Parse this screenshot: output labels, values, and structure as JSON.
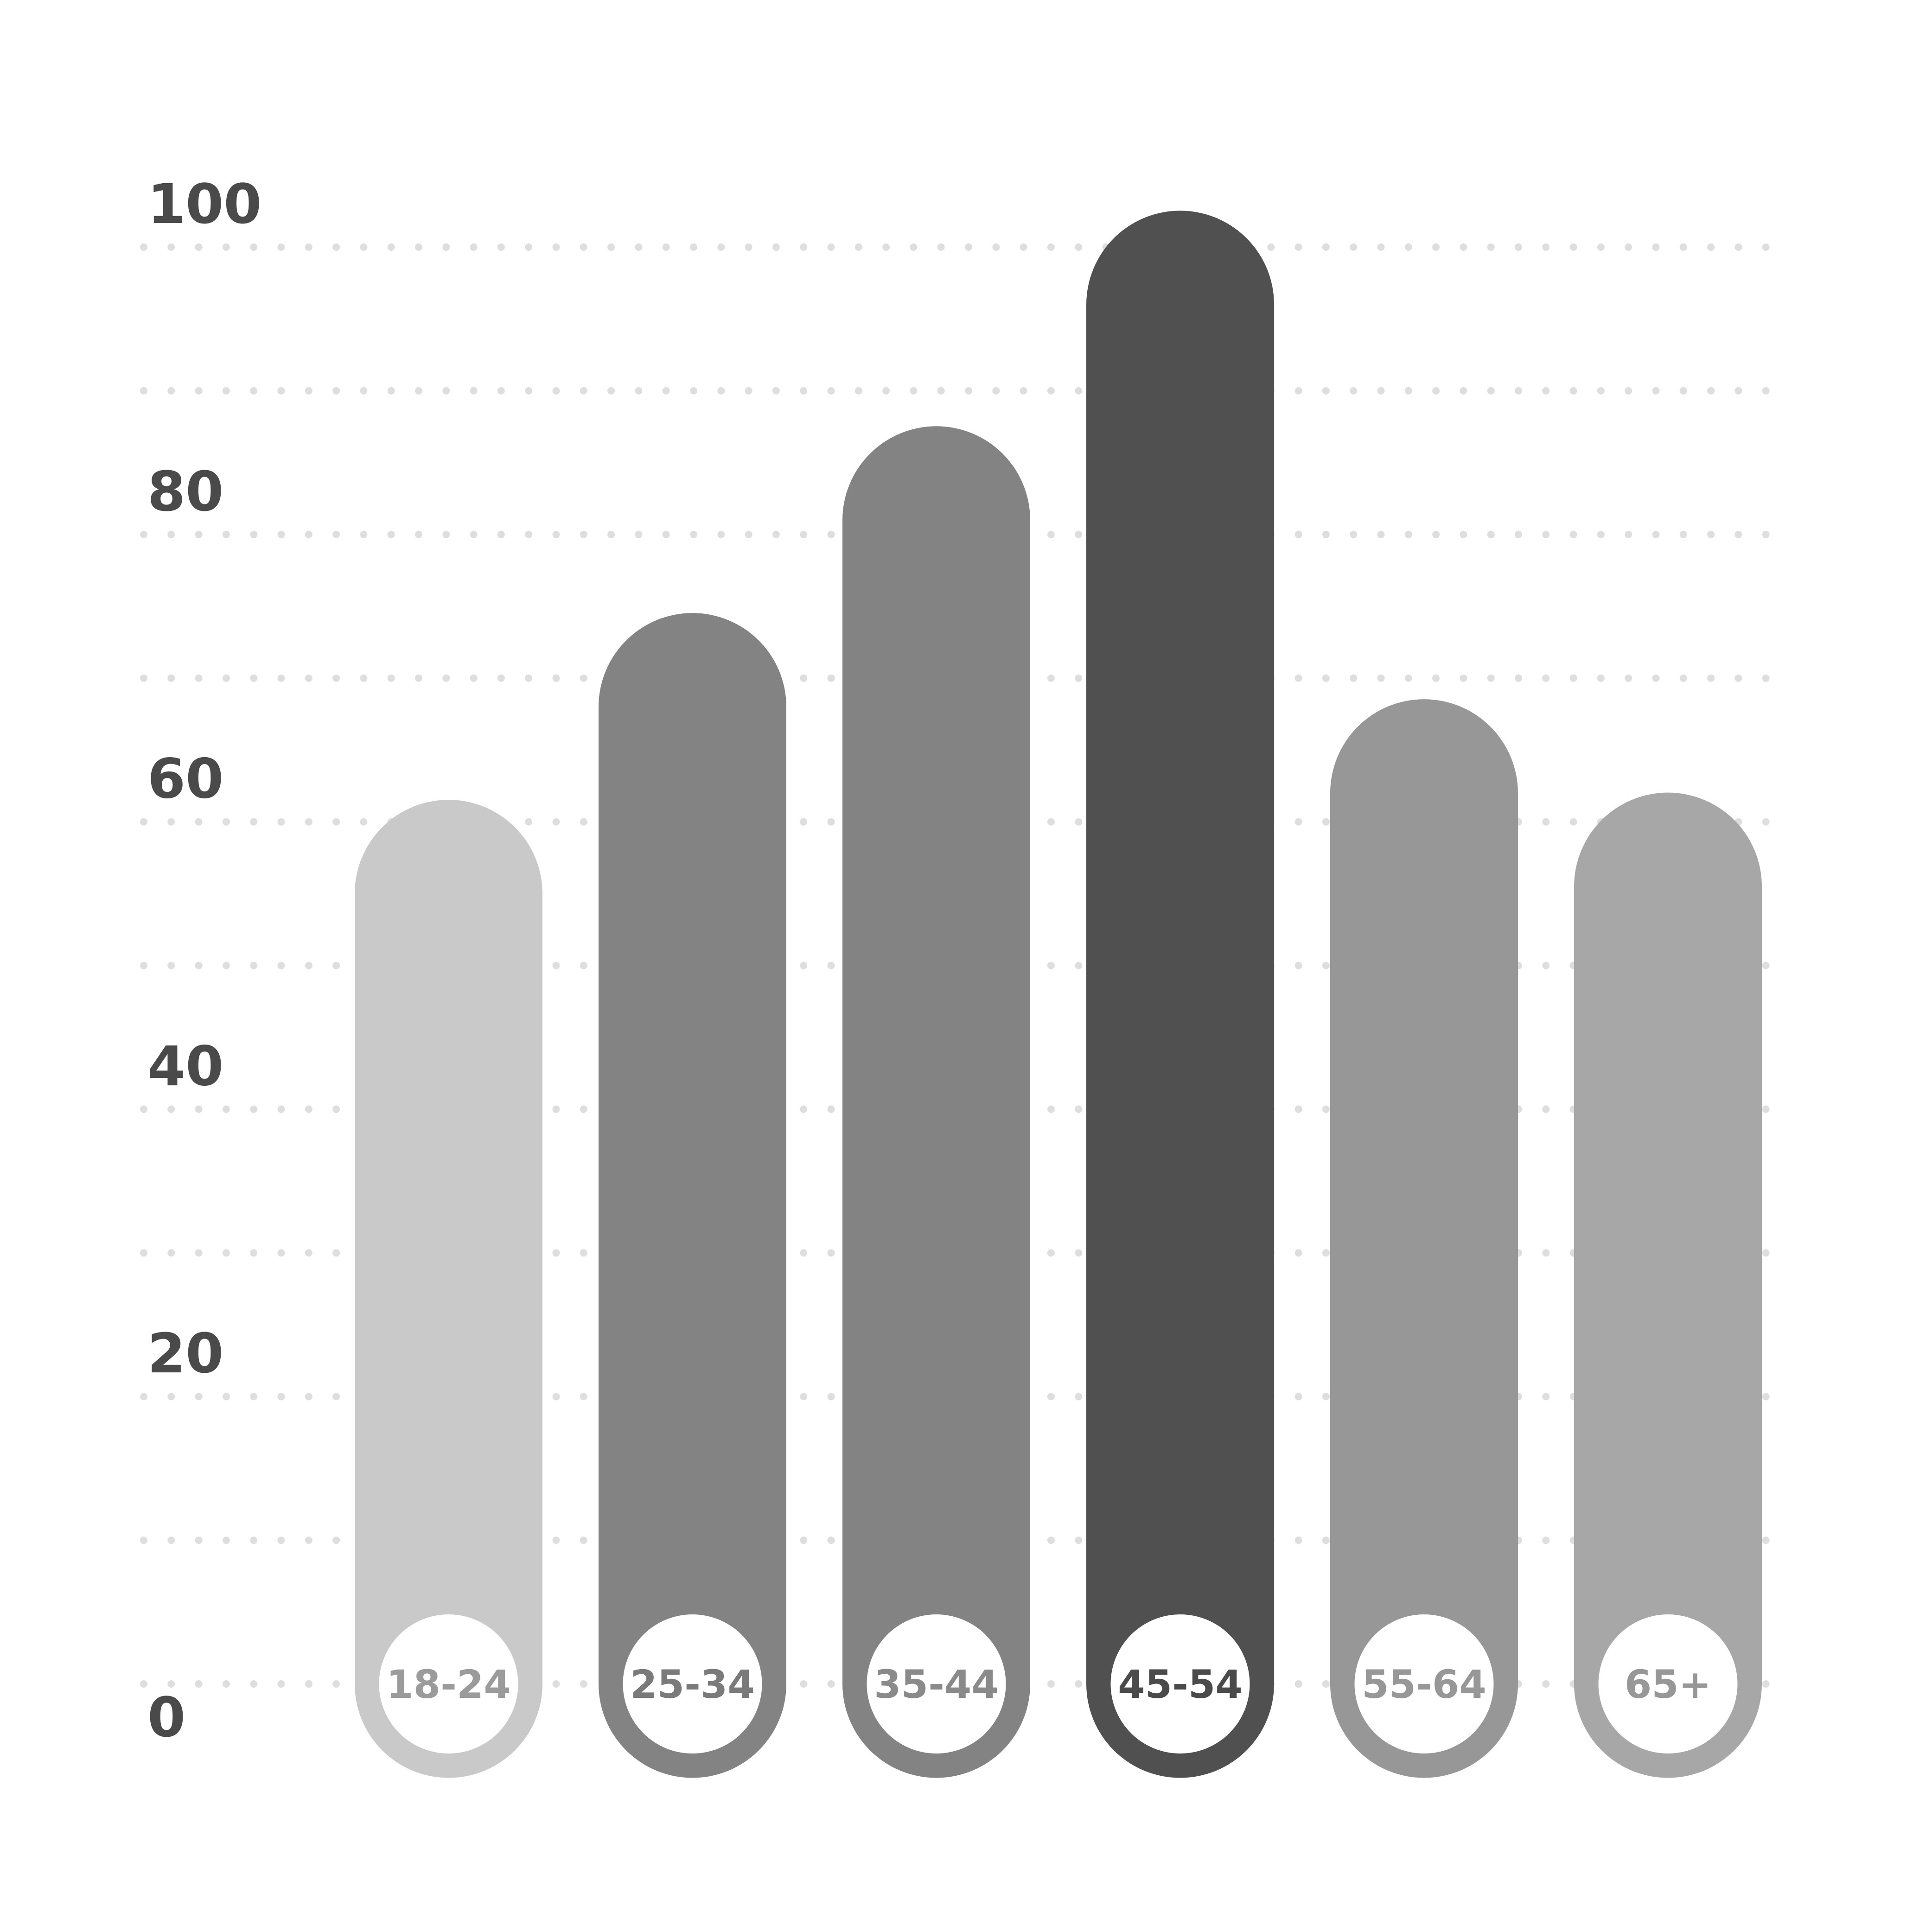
{
  "chart_data": {
    "type": "bar",
    "categories": [
      "18-24",
      "25-34",
      "35-44",
      "45-54",
      "55-64",
      "65+"
    ],
    "values": [
      55,
      68,
      81,
      96,
      62,
      55.5
    ],
    "colors": [
      "#c9c9c9",
      "#838383",
      "#838383",
      "#505050",
      "#979797",
      "#a7a7a7"
    ],
    "label_colors": [
      "#9b9b9b",
      "#7a7a7a",
      "#8a8a8a",
      "#4a4a4a",
      "#979797",
      "#979797"
    ],
    "yticks": [
      "0",
      "20",
      "40",
      "60",
      "80",
      "100"
    ],
    "ytick_values": [
      0,
      20,
      40,
      60,
      80,
      100
    ],
    "ylim": [
      0,
      100
    ],
    "grid": "dotted",
    "title": "",
    "xlabel": "",
    "ylabel": ""
  }
}
